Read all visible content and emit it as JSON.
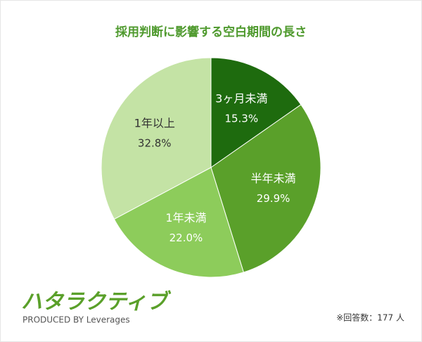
{
  "chart_data": {
    "type": "pie",
    "title": "採用判断に影響する空白期間の長さ",
    "categories": [
      "3ヶ月未満",
      "半年未満",
      "1年未満",
      "1年以上"
    ],
    "values": [
      15.3,
      29.9,
      22.0,
      32.8
    ],
    "value_labels": [
      "15.3%",
      "29.9%",
      "22.0%",
      "32.8%"
    ],
    "colors": [
      "#1e6b0e",
      "#5aa02a",
      "#8dcc5b",
      "#c4e3a5"
    ],
    "note": "※回答数：177 人"
  },
  "logo": {
    "name": "ハタラクティブ",
    "produced_by": "PRODUCED BY Leverages"
  }
}
